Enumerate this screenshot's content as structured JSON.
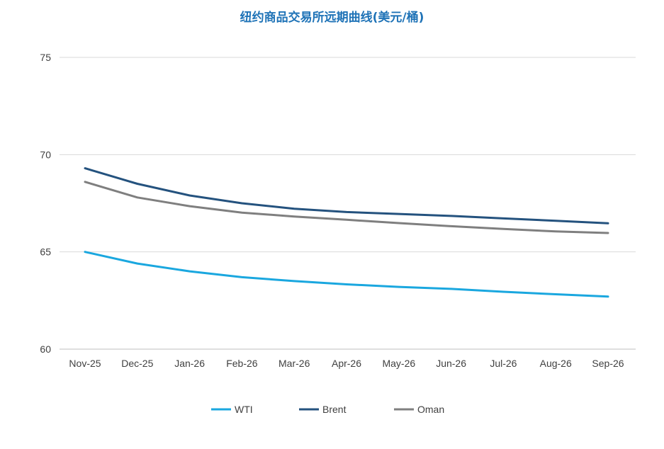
{
  "chart_data": {
    "type": "line",
    "title": "纽约商品交易所远期曲线(美元/桶)",
    "xlabel": "",
    "ylabel": "",
    "categories": [
      "Nov-25",
      "Dec-25",
      "Jan-26",
      "Feb-26",
      "Mar-26",
      "Apr-26",
      "May-26",
      "Jun-26",
      "Jul-26",
      "Aug-26",
      "Sep-26"
    ],
    "ylim": [
      60,
      75
    ],
    "yticks": [
      60,
      65,
      70,
      75
    ],
    "grid": true,
    "legend_position": "bottom",
    "series": [
      {
        "name": "WTI",
        "color": "#1aa7df",
        "values": [
          65.0,
          64.4,
          64.0,
          63.7,
          63.5,
          63.33,
          63.2,
          63.1,
          62.95,
          62.82,
          62.7
        ]
      },
      {
        "name": "Brent",
        "color": "#24527e",
        "values": [
          69.3,
          68.5,
          67.9,
          67.5,
          67.22,
          67.05,
          66.95,
          66.85,
          66.72,
          66.6,
          66.47
        ]
      },
      {
        "name": "Oman",
        "color": "#7f7f7f",
        "values": [
          68.6,
          67.8,
          67.35,
          67.02,
          66.82,
          66.65,
          66.48,
          66.32,
          66.18,
          66.05,
          65.97
        ]
      }
    ]
  }
}
